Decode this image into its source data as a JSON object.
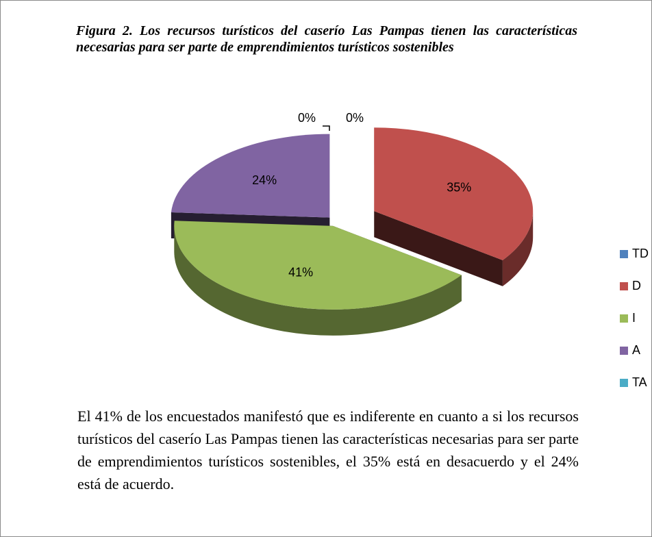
{
  "chart_data": {
    "type": "pie",
    "title": "Figura 2. Los recursos turísticos del caserío Las Pampas tienen las características necesarias para ser parte de emprendimientos turísticos sostenibles",
    "categories": [
      "TD",
      "D",
      "I",
      "A",
      "TA"
    ],
    "values": [
      0,
      35,
      41,
      24,
      0
    ],
    "value_labels": [
      "0%",
      "35%",
      "41%",
      "24%",
      "0%"
    ],
    "colors": [
      "#4f81bd",
      "#c0504d",
      "#9bbb59",
      "#8064a2",
      "#4bacc6"
    ],
    "legend": "right"
  },
  "paragraph": "El 41% de los encuestados manifestó que es indiferente en cuanto a si los recursos turísticos del caserío Las Pampas tienen las características necesarias para ser parte de emprendimientos turísticos sostenibles, el 35% está en desacuerdo y el 24% está de acuerdo."
}
